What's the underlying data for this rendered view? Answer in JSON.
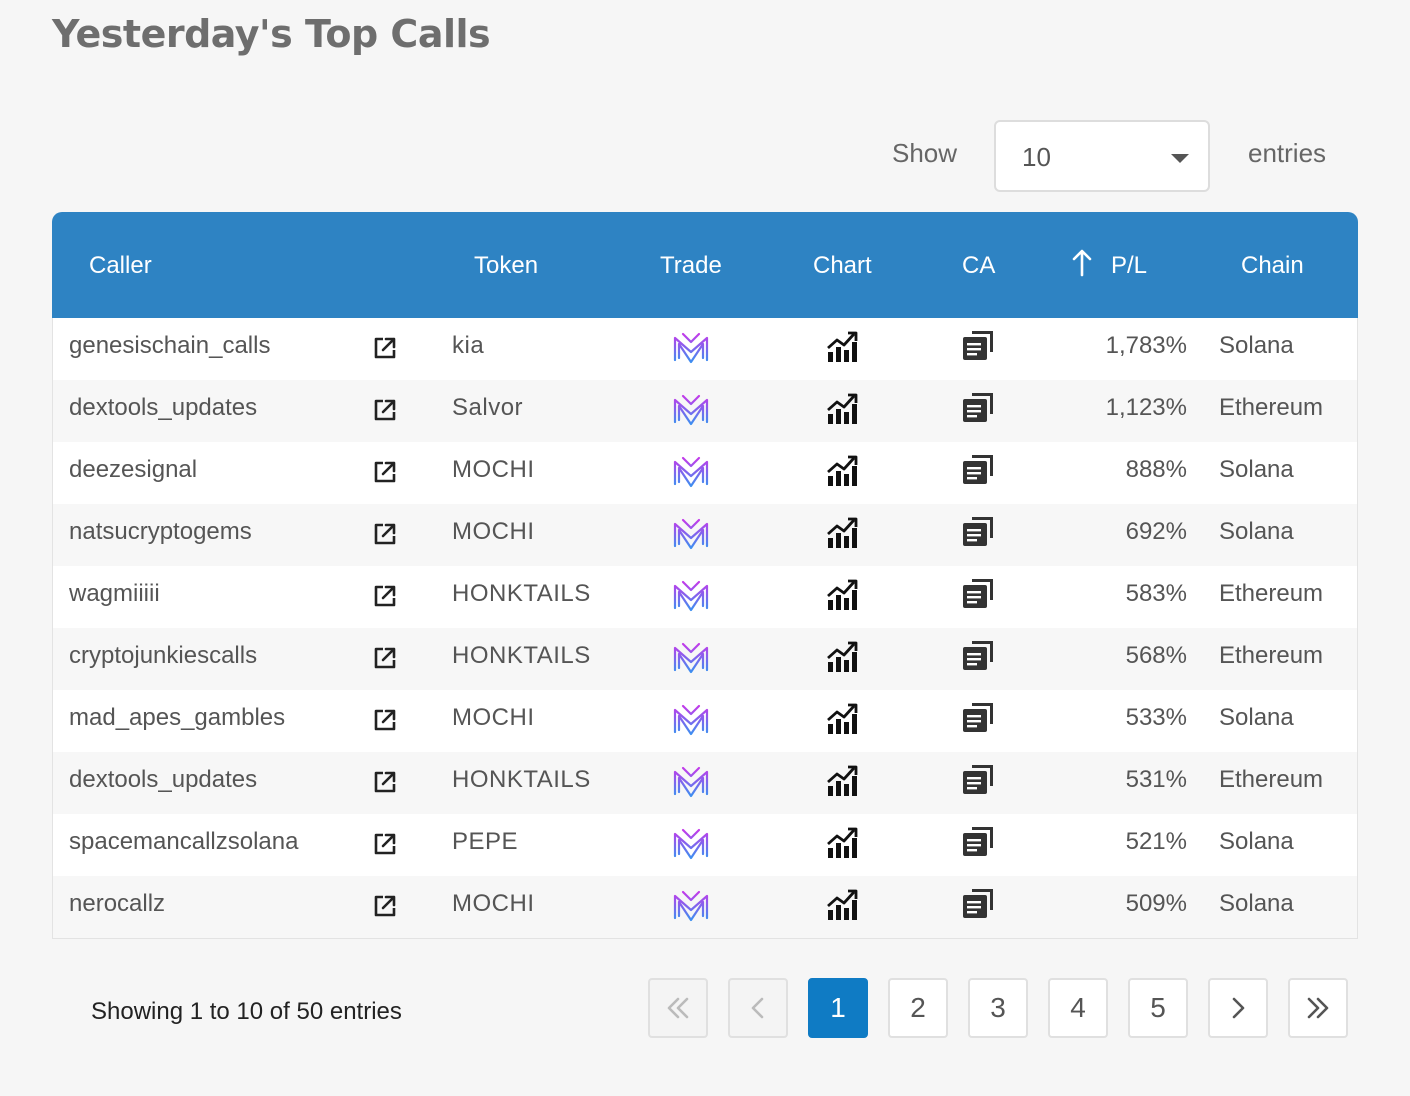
{
  "title": "Yesterday's Top Calls",
  "length_menu": {
    "show_label": "Show",
    "value": "10",
    "entries_label": "entries"
  },
  "table": {
    "headers": {
      "caller": "Caller",
      "token": "Token",
      "trade": "Trade",
      "chart": "Chart",
      "ca": "CA",
      "pl": "P/L",
      "chain": "Chain"
    },
    "sort": {
      "column": "P/L",
      "direction": "descending"
    },
    "rows": [
      {
        "caller": "genesischain_calls",
        "token": "kia",
        "pl": "1,783%",
        "chain": "Solana"
      },
      {
        "caller": "dextools_updates",
        "token": "Salvor",
        "pl": "1,123%",
        "chain": "Ethereum"
      },
      {
        "caller": "deezesignal",
        "token": "MOCHI",
        "pl": "888%",
        "chain": "Solana"
      },
      {
        "caller": "natsucryptogems",
        "token": "MOCHI",
        "pl": "692%",
        "chain": "Solana"
      },
      {
        "caller": "wagmiiiii",
        "token": "HONKTAILS",
        "pl": "583%",
        "chain": "Ethereum"
      },
      {
        "caller": "cryptojunkiescalls",
        "token": "HONKTAILS",
        "pl": "568%",
        "chain": "Ethereum"
      },
      {
        "caller": "mad_apes_gambles",
        "token": "MOCHI",
        "pl": "533%",
        "chain": "Solana"
      },
      {
        "caller": "dextools_updates",
        "token": "HONKTAILS",
        "pl": "531%",
        "chain": "Ethereum"
      },
      {
        "caller": "spacemancallzsolana",
        "token": "PEPE",
        "pl": "521%",
        "chain": "Solana"
      },
      {
        "caller": "nerocallz",
        "token": "MOCHI",
        "pl": "509%",
        "chain": "Solana"
      }
    ]
  },
  "icons": {
    "external": "external-link-icon",
    "trade": "trade-logo-icon",
    "chart": "chart-icon",
    "ca": "copy-icon",
    "sort": "sort-arrow-up-icon"
  },
  "info": "Showing 1 to 10 of 50 entries",
  "pagination": {
    "pages": [
      "1",
      "2",
      "3",
      "4",
      "5"
    ],
    "current": "1"
  },
  "colors": {
    "header_bg": "#2e83c3",
    "active_page": "#0f7bc4"
  }
}
